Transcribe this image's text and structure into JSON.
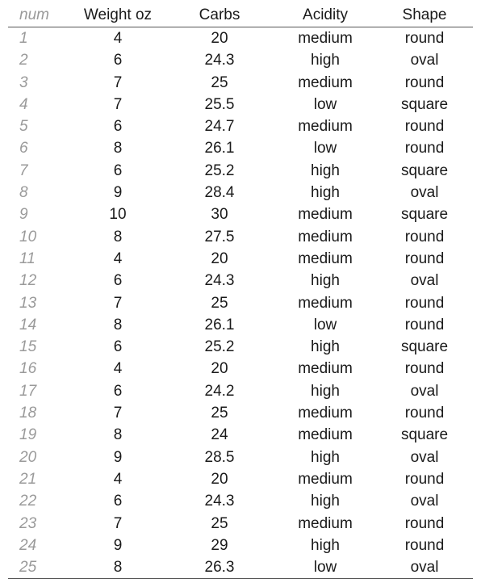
{
  "table": {
    "headers": [
      "num",
      "Weight oz",
      "Carbs",
      "Acidity",
      "Shape"
    ],
    "rows": [
      [
        "1",
        "4",
        "20",
        "medium",
        "round"
      ],
      [
        "2",
        "6",
        "24.3",
        "high",
        "oval"
      ],
      [
        "3",
        "7",
        "25",
        "medium",
        "round"
      ],
      [
        "4",
        "7",
        "25.5",
        "low",
        "square"
      ],
      [
        "5",
        "6",
        "24.7",
        "medium",
        "round"
      ],
      [
        "6",
        "8",
        "26.1",
        "low",
        "round"
      ],
      [
        "7",
        "6",
        "25.2",
        "high",
        "square"
      ],
      [
        "8",
        "9",
        "28.4",
        "high",
        "oval"
      ],
      [
        "9",
        "10",
        "30",
        "medium",
        "square"
      ],
      [
        "10",
        "8",
        "27.5",
        "medium",
        "round"
      ],
      [
        "11",
        "4",
        "20",
        "medium",
        "round"
      ],
      [
        "12",
        "6",
        "24.3",
        "high",
        "oval"
      ],
      [
        "13",
        "7",
        "25",
        "medium",
        "round"
      ],
      [
        "14",
        "8",
        "26.1",
        "low",
        "round"
      ],
      [
        "15",
        "6",
        "25.2",
        "high",
        "square"
      ],
      [
        "16",
        "4",
        "20",
        "medium",
        "round"
      ],
      [
        "17",
        "6",
        "24.2",
        "high",
        "oval"
      ],
      [
        "18",
        "7",
        "25",
        "medium",
        "round"
      ],
      [
        "19",
        "8",
        "24",
        "medium",
        "square"
      ],
      [
        "20",
        "9",
        "28.5",
        "high",
        "oval"
      ],
      [
        "21",
        "4",
        "20",
        "medium",
        "round"
      ],
      [
        "22",
        "6",
        "24.3",
        "high",
        "oval"
      ],
      [
        "23",
        "7",
        "25",
        "medium",
        "round"
      ],
      [
        "24",
        "9",
        "29",
        "high",
        "round"
      ],
      [
        "25",
        "8",
        "26.3",
        "low",
        "oval"
      ]
    ]
  }
}
